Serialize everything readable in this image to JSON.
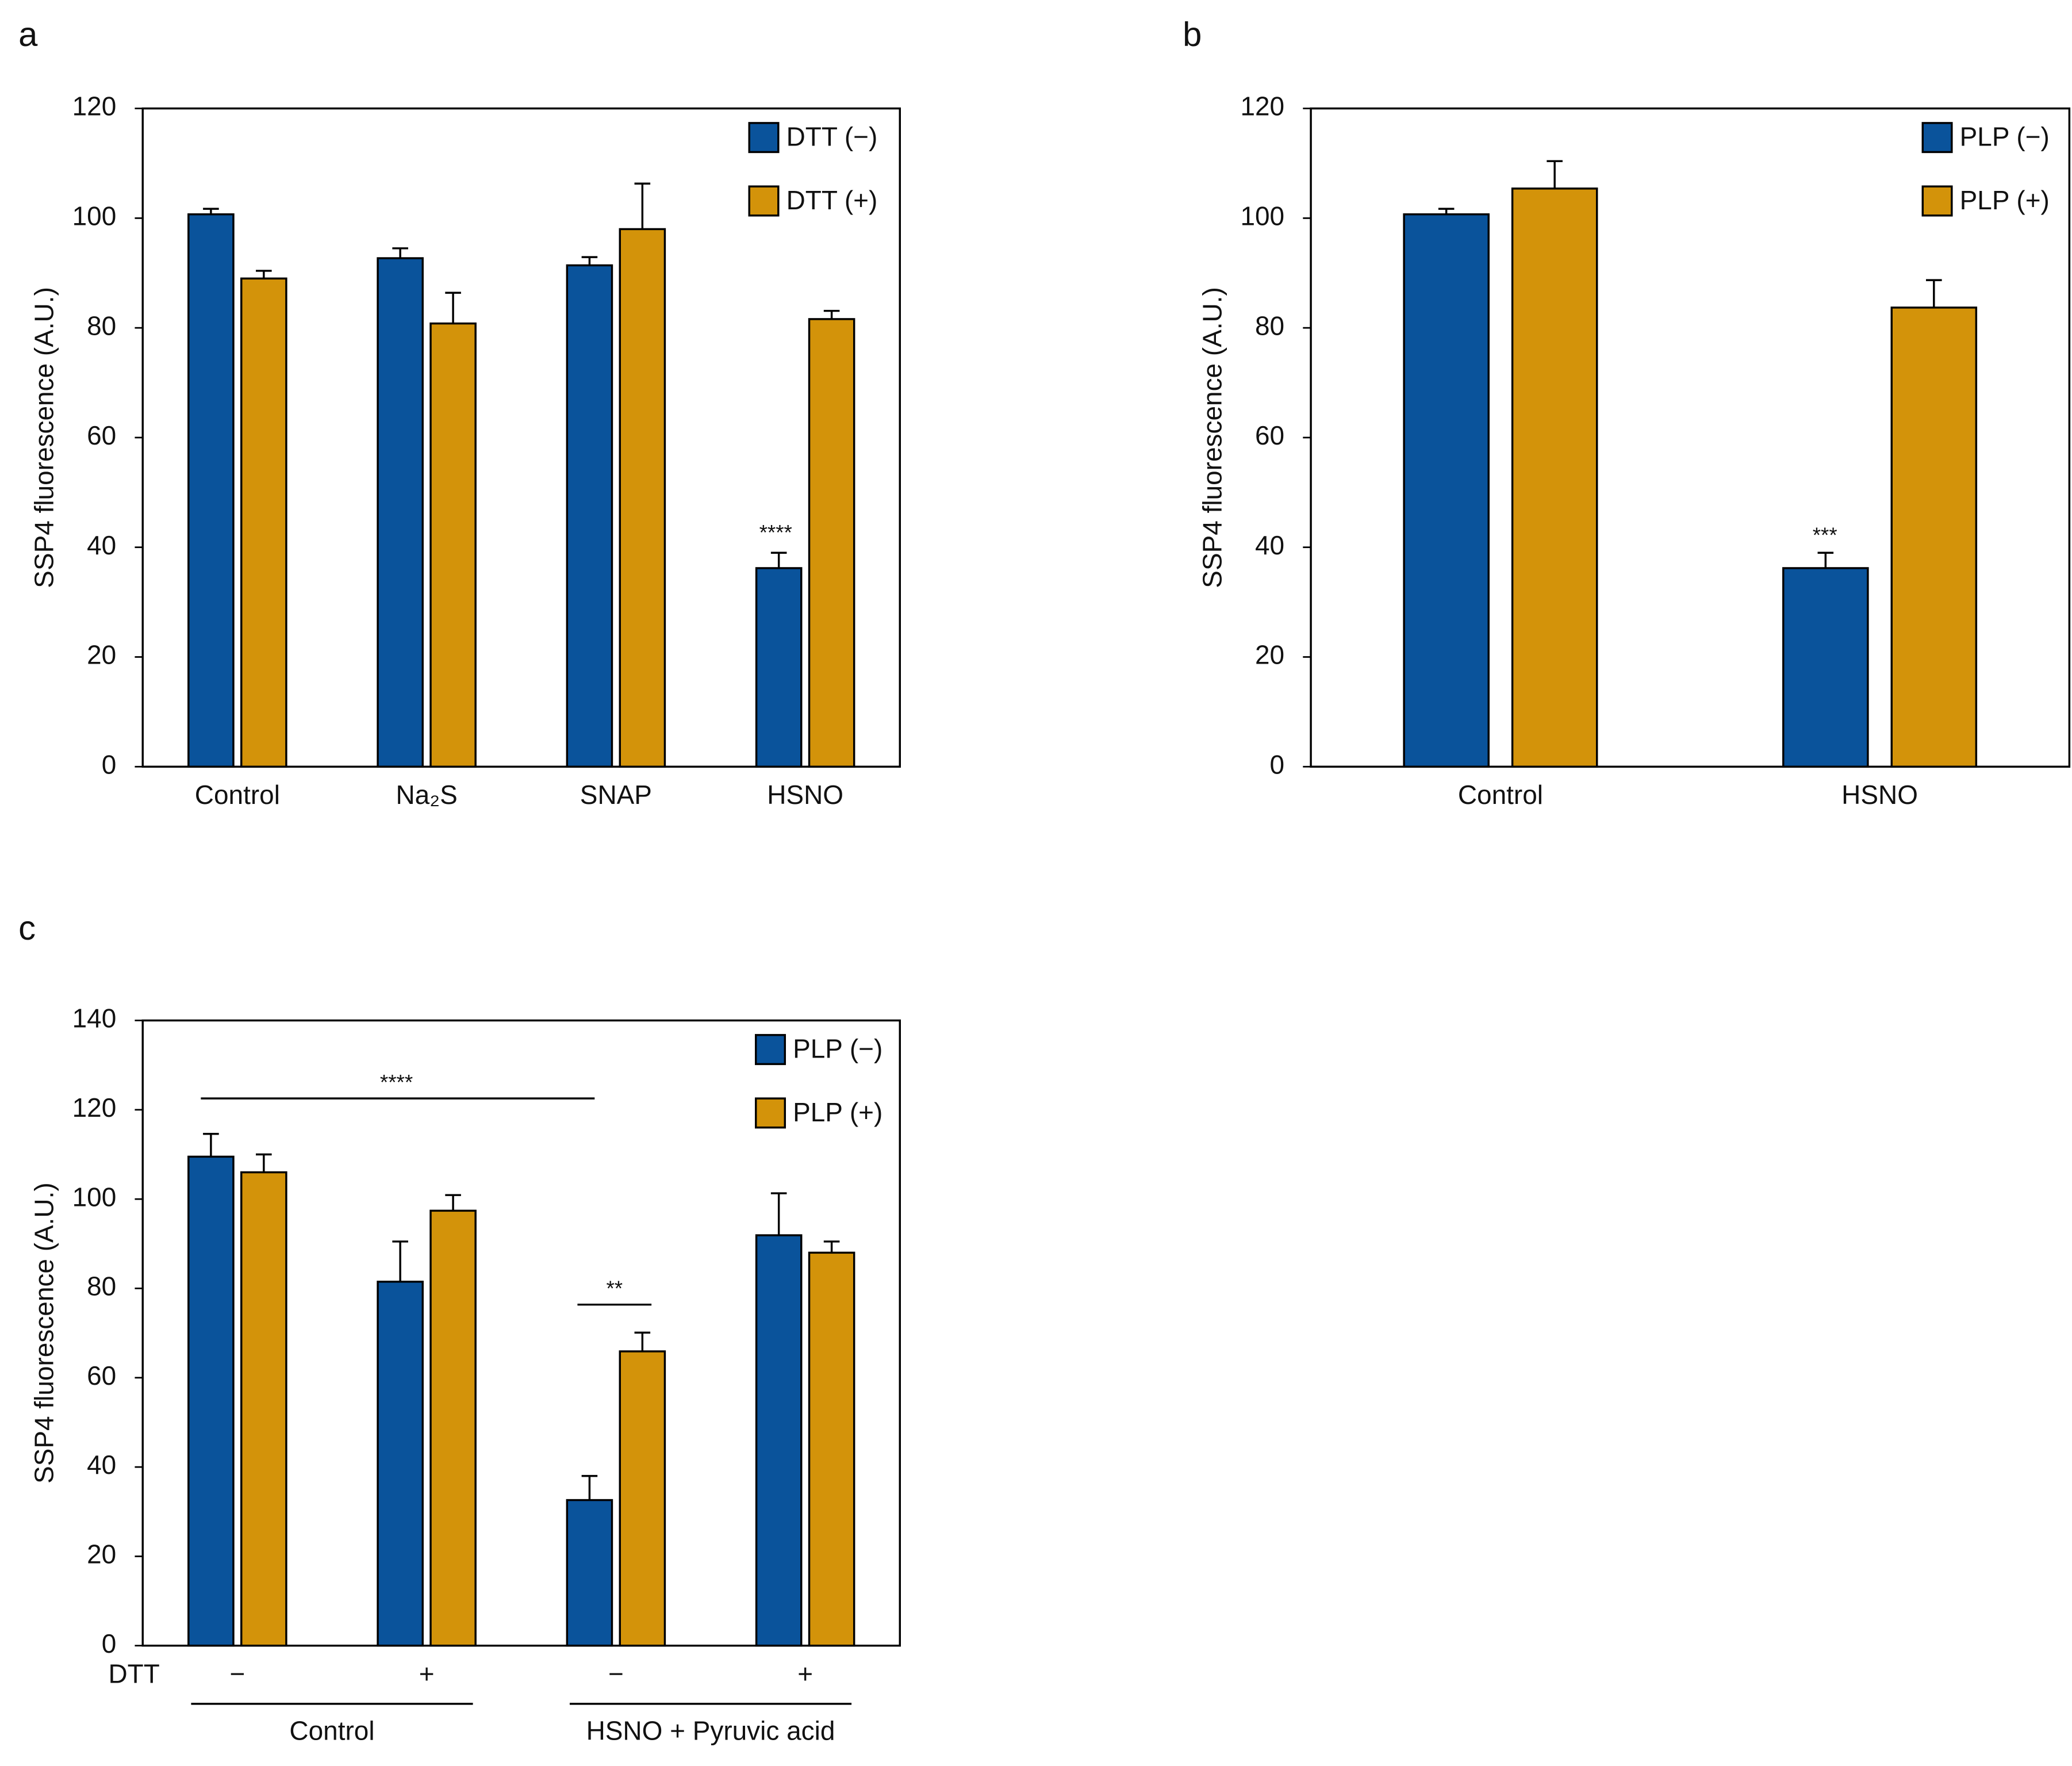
{
  "chart_data": [
    {
      "type": "bar",
      "panel": "a",
      "y_label": "SSP4 fluorescence (A.U.)",
      "categories": [
        "Control",
        "Na₂S",
        "SNAP",
        "HSNO"
      ],
      "series": [
        {
          "name": "DTT (−)",
          "color": "#0a539b",
          "values": [
            100.7,
            92.7,
            91.4,
            36.2
          ],
          "errors": [
            1.0,
            1.8,
            1.5,
            2.8
          ]
        },
        {
          "name": "DTT (+)",
          "color": "#d3930a",
          "values": [
            89.0,
            80.8,
            98.0,
            81.6
          ],
          "errors": [
            1.4,
            5.6,
            8.3,
            1.5
          ]
        }
      ],
      "ylim": [
        0,
        120
      ],
      "yticks": [
        0,
        20,
        40,
        60,
        80,
        100,
        120
      ],
      "legend": "top-right",
      "annotations": [
        "****"
      ]
    },
    {
      "type": "bar",
      "panel": "b",
      "y_label": "SSP4 fluorescence (A.U.)",
      "categories": [
        "Control",
        "HSNO"
      ],
      "series": [
        {
          "name": "PLP (−)",
          "color": "#0a539b",
          "values": [
            100.7,
            36.2
          ],
          "errors": [
            1.0,
            2.8
          ]
        },
        {
          "name": "PLP (+)",
          "color": "#d3930a",
          "values": [
            105.4,
            83.7
          ],
          "errors": [
            5.0,
            5.0
          ]
        }
      ],
      "ylim": [
        0,
        120
      ],
      "yticks": [
        0,
        20,
        40,
        60,
        80,
        100,
        120
      ],
      "legend": "top-right",
      "annotations": [
        "***"
      ]
    },
    {
      "type": "bar",
      "panel": "c",
      "y_label": "SSP4 fluorescence (A.U.)",
      "category_axis_label": "DTT",
      "categories": [
        "−",
        "+",
        "−",
        "+"
      ],
      "group_labels": [
        "Control",
        "HSNO + Pyruvic acid"
      ],
      "series": [
        {
          "name": "PLP (−)",
          "color": "#0a539b",
          "values": [
            109.5,
            81.5,
            32.6,
            91.9
          ],
          "errors": [
            5.1,
            9.0,
            5.4,
            9.4
          ]
        },
        {
          "name": "PLP (+)",
          "color": "#d3930a",
          "values": [
            106.0,
            97.4,
            65.9,
            88.0
          ],
          "errors": [
            4.0,
            3.5,
            4.2,
            2.5
          ]
        }
      ],
      "ylim": [
        0,
        140
      ],
      "yticks": [
        0,
        20,
        40,
        60,
        80,
        100,
        120,
        140
      ],
      "legend": "top-right",
      "annotations": [
        "****",
        "**"
      ]
    }
  ]
}
